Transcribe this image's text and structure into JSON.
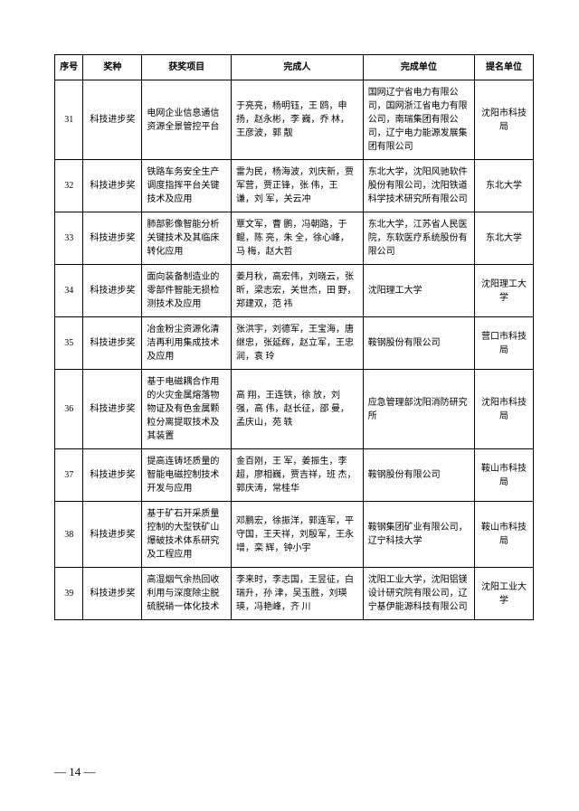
{
  "headers": {
    "seq": "序号",
    "type": "奖种",
    "project": "获奖项目",
    "people": "完成人",
    "unit": "完成单位",
    "nominator": "提名单位"
  },
  "rows": [
    {
      "seq": "31",
      "type": "科技进步奖",
      "project": "电网企业信息通信资源全景管控平台",
      "people": "于亮亮，杨明钰，王 鸥，申 扬，赵永彬，李 巍，乔 林，王彦波，郭 靓",
      "unit": "国网辽宁省电力有限公司，国网浙江省电力有限公司，南瑞集团有限公司，辽宁电力能源发展集团有限公司",
      "nominator": "沈阳市科技局"
    },
    {
      "seq": "32",
      "type": "科技进步奖",
      "project": "铁路车务安全生产调度指挥平台关键技术及应用",
      "people": "雷为民，杨海波，刘庆新，贾军营，贾正锋，张 伟，王 谦，刘 军，关云冲",
      "unit": "东北大学，沈阳风驰软件股份有限公司，沈阳铁道科学技术研究所有限公司",
      "nominator": "东北大学"
    },
    {
      "seq": "33",
      "type": "科技进步奖",
      "project": "肺部影像智能分析关键技术及其临床转化应用",
      "people": "覃文军，曹 鹏，冯朝路，于 鲲，陈 亮，朱 全，徐心峰，马 梅，赵大哲",
      "unit": "东北大学，江苏省人民医院，东软医疗系统股份有限公司",
      "nominator": "东北大学"
    },
    {
      "seq": "34",
      "type": "科技进步奖",
      "project": "面向装备制造业的零部件智能无损检测技术及应用",
      "people": "姜月秋，高宏伟，刘晓云，张 昕，梁志宏，关世杰，田 野，郑建双，范 祎",
      "unit": "沈阳理工大学",
      "nominator": "沈阳理工大学"
    },
    {
      "seq": "35",
      "type": "科技进步奖",
      "project": "冶金粉尘资源化清洁再利用集成技术及应用",
      "people": "张洪宇，刘德军，王宝海，唐继忠，张延辉，赵立军，王忠润，袁 玲",
      "unit": "鞍钢股份有限公司",
      "nominator": "营口市科技局"
    },
    {
      "seq": "36",
      "type": "科技进步奖",
      "project": "基于电磁耦合作用的火灾金属熔落物物证及有色金属颗粒分离提取技术及其装置",
      "people": "高 翔，王连铁，徐 放，刘 强，高 伟，赵长征，邵 曼，孟庆山，苑 轶",
      "unit": "应急管理部沈阳消防研究所",
      "nominator": "沈阳市科技局"
    },
    {
      "seq": "37",
      "type": "科技进步奖",
      "project": "提高连铸坯质量的智能电磁控制技术开发与应用",
      "people": "金百刚，王 军，姜振生，李 超，廖相巍，贾吉祥，班 杰，郭庆涛，常桂华",
      "unit": "鞍钢股份有限公司",
      "nominator": "鞍山市科技局"
    },
    {
      "seq": "38",
      "type": "科技进步奖",
      "project": "基于矿石开采质量控制的大型铁矿山爆破技术体系研究及工程应用",
      "people": "邓鹏宏，徐振洋，郭连军，平守国，王天祥，刘殷军，王永增，栾 辉，钟小宇",
      "unit": "鞍钢集团矿业有限公司，辽宁科技大学",
      "nominator": "鞍山市科技局"
    },
    {
      "seq": "39",
      "type": "科技进步奖",
      "project": "高湿烟气余热回收利用与深度除尘脱硫脱硝一体化技术",
      "people": "李来时，李志国，王昱征，白瑞升，孙 津，吴玉胜，刘瑛瑛，冯艳峰，齐 川",
      "unit": "沈阳工业大学，沈阳铝镁设计研究院有限公司，辽宁基伊能源科技有限公司",
      "nominator": "沈阳工业大学"
    }
  ],
  "page_number": "— 14 —"
}
